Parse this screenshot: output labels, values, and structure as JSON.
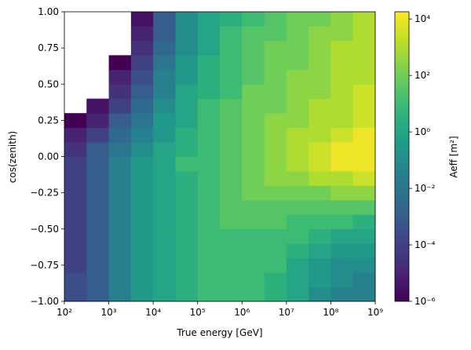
{
  "chart_data": {
    "type": "heatmap",
    "xlabel": "True energy [GeV]",
    "ylabel": "cos(zenith)",
    "colorbar_label": "Aeff [m²]",
    "xscale": "log",
    "colorscale": "log",
    "colormap": "viridis",
    "xlim": [
      100,
      1000000000
    ],
    "ylim": [
      -1,
      1
    ],
    "zlim": [
      1e-06,
      18000
    ],
    "xticks": [
      {
        "value": 100,
        "label": "10²"
      },
      {
        "value": 1000,
        "label": "10³"
      },
      {
        "value": 10000,
        "label": "10⁴"
      },
      {
        "value": 100000,
        "label": "10⁵"
      },
      {
        "value": 1000000,
        "label": "10⁶"
      },
      {
        "value": 10000000,
        "label": "10⁷"
      },
      {
        "value": 100000000,
        "label": "10⁸"
      },
      {
        "value": 1000000000,
        "label": "10⁹"
      }
    ],
    "yticks": [
      {
        "value": -1,
        "label": "−1.00"
      },
      {
        "value": -0.75,
        "label": "−0.75"
      },
      {
        "value": -0.5,
        "label": "−0.50"
      },
      {
        "value": -0.25,
        "label": "−0.25"
      },
      {
        "value": 0,
        "label": "0.00"
      },
      0.25,
      {
        "value": 0.5,
        "label": "0.50"
      },
      0.75,
      {
        "value": 1,
        "label": "1.00"
      }
    ],
    "zticks": [
      {
        "value": 1e-06,
        "label": "10⁻⁶"
      },
      {
        "value": 0.0001,
        "label": "10⁻⁴"
      },
      {
        "value": 0.01,
        "label": "10⁻²"
      },
      {
        "value": 1,
        "label": "10⁰"
      },
      {
        "value": 100,
        "label": "10²"
      },
      {
        "value": 10000,
        "label": "10⁴"
      }
    ],
    "x_edges": [
      100,
      316,
      1000,
      3162,
      10000,
      31623,
      100000,
      316228,
      1000000,
      3162278,
      10000000,
      31622777,
      100000000,
      316227766,
      1000000000
    ],
    "y_edges": [
      -1,
      -0.9,
      -0.8,
      -0.7,
      -0.6,
      -0.5,
      -0.4,
      -0.3,
      -0.2,
      -0.1,
      0,
      0.1,
      0.2,
      0.3,
      0.4,
      0.5,
      0.6,
      0.7,
      0.8,
      0.9,
      1
    ],
    "values": [
      [
        0.0003,
        0.001,
        0.03,
        0.3,
        1,
        3,
        10,
        10,
        10,
        3,
        1,
        0.1,
        0.03,
        0.03
      ],
      [
        0.0003,
        0.001,
        0.03,
        0.3,
        1,
        3,
        10,
        10,
        10,
        3,
        1,
        0.3,
        0.1,
        0.03
      ],
      [
        0.0001,
        0.001,
        0.03,
        0.3,
        1,
        3,
        10,
        10,
        10,
        10,
        1,
        0.3,
        0.1,
        0.1
      ],
      [
        0.0001,
        0.001,
        0.03,
        0.3,
        1,
        3,
        10,
        10,
        10,
        10,
        3,
        1,
        0.3,
        0.3
      ],
      [
        0.0001,
        0.001,
        0.03,
        0.3,
        1,
        3,
        10,
        10,
        10,
        10,
        10,
        3,
        1,
        1
      ],
      [
        0.0001,
        0.001,
        0.03,
        0.3,
        1,
        3,
        10,
        30,
        30,
        30,
        10,
        10,
        10,
        3
      ],
      [
        0.0001,
        0.001,
        0.03,
        0.3,
        1,
        3,
        10,
        30,
        30,
        30,
        30,
        30,
        30,
        30
      ],
      [
        0.0001,
        0.001,
        0.03,
        0.3,
        1,
        3,
        10,
        30,
        100,
        100,
        100,
        100,
        300,
        300
      ],
      [
        0.0001,
        0.001,
        0.03,
        0.3,
        1,
        3,
        10,
        30,
        100,
        300,
        300,
        1000,
        1000,
        3000
      ],
      [
        0.0001,
        0.001,
        0.03,
        0.3,
        1,
        10,
        10,
        30,
        100,
        300,
        1000,
        3000,
        10000,
        10000
      ],
      [
        3e-05,
        0.001,
        0.01,
        0.1,
        1,
        3,
        10,
        30,
        100,
        300,
        1000,
        3000,
        10000,
        10000
      ],
      [
        1e-05,
        0.0001,
        0.003,
        0.03,
        0.3,
        3,
        10,
        30,
        100,
        300,
        1000,
        1000,
        3000,
        10000
      ],
      [
        1e-06,
        1e-05,
        0.001,
        0.01,
        0.3,
        1,
        10,
        30,
        100,
        300,
        300,
        1000,
        1000,
        3000
      ],
      [
        null,
        3e-06,
        0.0001,
        0.003,
        0.1,
        1,
        10,
        30,
        100,
        100,
        300,
        1000,
        1000,
        3000
      ],
      [
        null,
        null,
        3e-05,
        0.001,
        0.03,
        1,
        3,
        10,
        100,
        100,
        300,
        300,
        1000,
        3000
      ],
      [
        null,
        null,
        1e-05,
        0.0003,
        0.03,
        0.3,
        3,
        10,
        30,
        100,
        300,
        300,
        1000,
        1000
      ],
      [
        null,
        null,
        1e-06,
        0.0001,
        0.01,
        0.3,
        3,
        10,
        30,
        100,
        100,
        300,
        1000,
        1000
      ],
      [
        null,
        null,
        null,
        3e-05,
        0.003,
        0.1,
        1,
        10,
        30,
        100,
        100,
        300,
        1000,
        1000
      ],
      [
        null,
        null,
        null,
        1e-05,
        0.001,
        0.1,
        1,
        10,
        30,
        30,
        100,
        300,
        300,
        1000
      ],
      [
        null,
        null,
        null,
        3e-06,
        0.001,
        0.1,
        1,
        3,
        10,
        30,
        100,
        100,
        300,
        1000
      ]
    ]
  }
}
